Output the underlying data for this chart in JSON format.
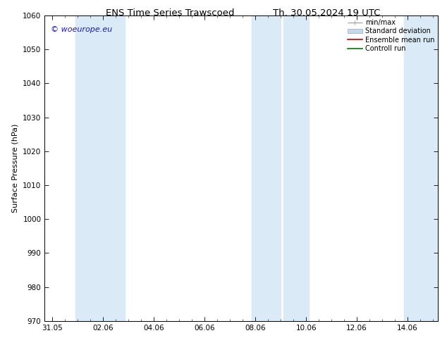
{
  "title_left": "ENS Time Series Trawscoed",
  "title_right": "Th. 30.05.2024 19 UTC",
  "ylabel": "Surface Pressure (hPa)",
  "ylim": [
    970,
    1060
  ],
  "yticks": [
    970,
    980,
    990,
    1000,
    1010,
    1020,
    1030,
    1040,
    1050,
    1060
  ],
  "xtick_labels": [
    "31.05",
    "02.06",
    "04.06",
    "06.06",
    "08.06",
    "10.06",
    "12.06",
    "14.06"
  ],
  "xtick_positions": [
    0,
    2,
    4,
    6,
    8,
    10,
    12,
    14
  ],
  "xlim": [
    -0.3,
    15.2
  ],
  "shaded_bands": [
    {
      "start": 0.9,
      "end": 2.85
    },
    {
      "start": 7.85,
      "end": 9.0
    },
    {
      "start": 9.1,
      "end": 10.1
    },
    {
      "start": 13.85,
      "end": 15.2
    }
  ],
  "band_color": "#daeaf7",
  "watermark": "© woeurope.eu",
  "watermark_color": "#1515cc",
  "legend_items": [
    {
      "label": "min/max",
      "color": "#aaaaaa",
      "style": "errorbar"
    },
    {
      "label": "Standard deviation",
      "color": "#c5d9ea",
      "style": "box"
    },
    {
      "label": "Ensemble mean run",
      "color": "#cc0000",
      "style": "line"
    },
    {
      "label": "Controll run",
      "color": "#007700",
      "style": "line"
    }
  ],
  "background_color": "#ffffff",
  "title_fontsize": 9.5,
  "label_fontsize": 8,
  "tick_fontsize": 7.5,
  "watermark_fontsize": 8,
  "legend_fontsize": 7
}
